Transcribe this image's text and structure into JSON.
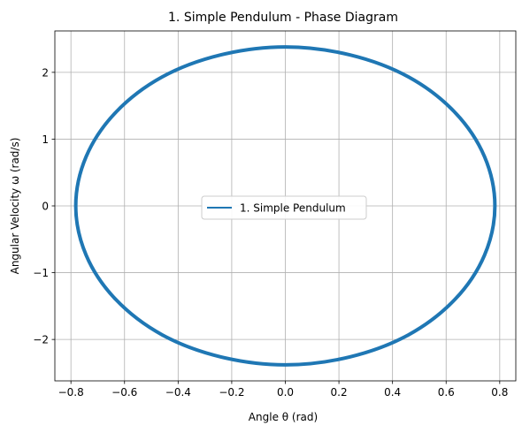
{
  "chart_data": {
    "type": "line",
    "title": "1. Simple Pendulum - Phase Diagram",
    "xlabel": "Angle θ (rad)",
    "ylabel": "Angular Velocity ω (rad/s)",
    "xlim": [
      -0.86,
      0.86
    ],
    "ylim": [
      -2.62,
      2.62
    ],
    "xticks": [
      -0.8,
      -0.6,
      -0.4,
      -0.2,
      0.0,
      0.2,
      0.4,
      0.6,
      0.8
    ],
    "xtick_labels": [
      "−0.8",
      "−0.6",
      "−0.4",
      "−0.2",
      "0.0",
      "0.2",
      "0.4",
      "0.6",
      "0.8"
    ],
    "yticks": [
      -2,
      -1,
      0,
      1,
      2
    ],
    "ytick_labels": [
      "−2",
      "−1",
      "0",
      "1",
      "2"
    ],
    "grid": true,
    "legend_position": "center",
    "series": [
      {
        "name": "1. Simple Pendulum",
        "color": "#1f77b4",
        "x": [
          0.782,
          0.743,
          0.633,
          0.46,
          0.242,
          0.0,
          -0.242,
          -0.46,
          -0.633,
          -0.743,
          -0.782,
          -0.743,
          -0.633,
          -0.46,
          -0.242,
          0.0,
          0.242,
          0.46,
          0.633,
          0.743,
          0.782
        ],
        "y": [
          0.0,
          0.74,
          1.4,
          1.93,
          2.26,
          2.38,
          2.26,
          1.93,
          1.4,
          0.74,
          0.0,
          -0.74,
          -1.4,
          -1.93,
          -2.26,
          -2.38,
          -2.26,
          -1.93,
          -1.4,
          -0.74,
          0.0
        ]
      }
    ]
  }
}
